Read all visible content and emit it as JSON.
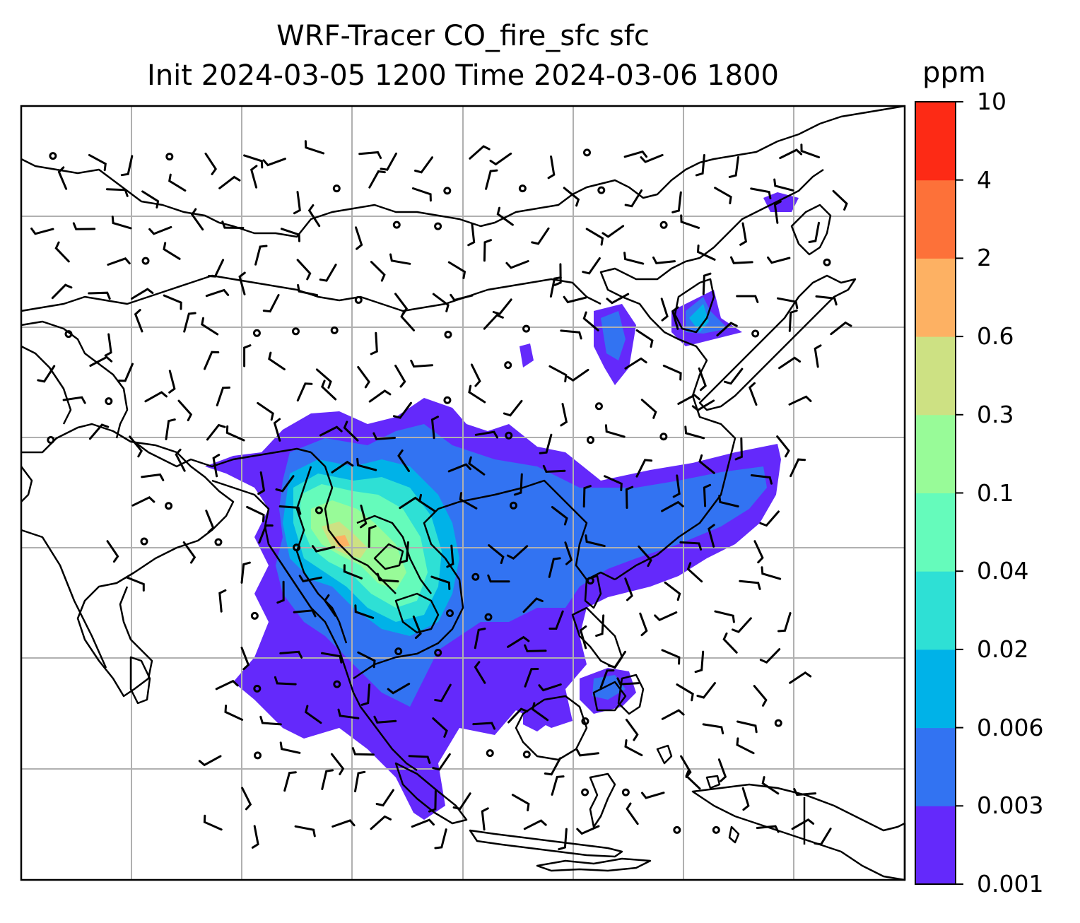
{
  "title_line1": "WRF-Tracer CO_fire_sfc sfc",
  "title_line2": "Init 2024-03-05 1200 Time 2024-03-06 1800",
  "colorbar": {
    "units": "ppm",
    "levels": [
      "0.001",
      "0.003",
      "0.006",
      "0.02",
      "0.04",
      "0.1",
      "0.3",
      "0.6",
      "2",
      "4",
      "10"
    ],
    "colors": [
      "#6429fb",
      "#3273f2",
      "#00b2e8",
      "#2ee0d5",
      "#65fbbb",
      "#98fb98",
      "#cde183",
      "#fdb163",
      "#fd7139",
      "#fd2a15"
    ]
  },
  "map": {
    "region": "Southeast Asia / East Asia",
    "field": "CO_fire_sfc",
    "overlays": [
      "coastlines",
      "country-borders",
      "gridlines",
      "wind-barbs"
    ],
    "gridline_color": "#b0b0b0"
  }
}
